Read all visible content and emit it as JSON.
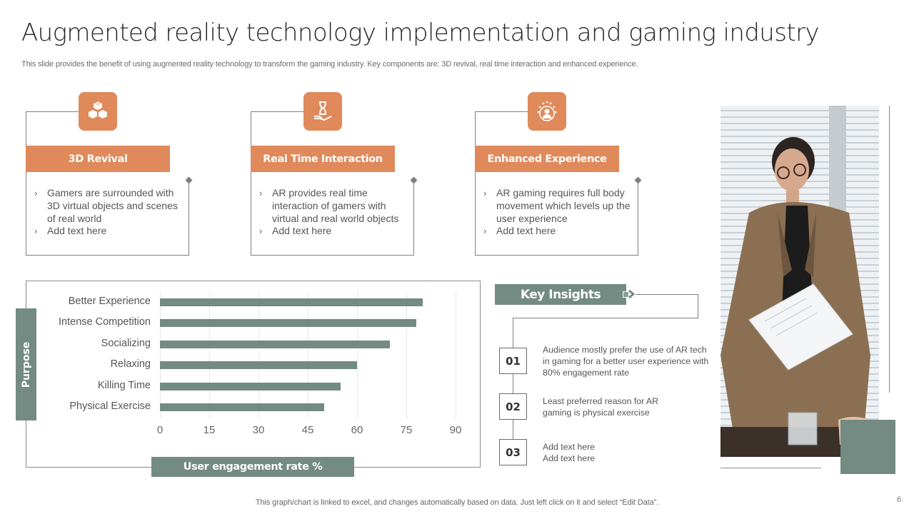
{
  "slide": {
    "title": "Augmented reality technology implementation and gaming industry",
    "subtitle": "This slide provides the benefit of using augmented reality technology to transform the gaming industry. Key components are: 3D revival, real time interaction and enhanced experience.",
    "footer_note": "This graph/chart is linked to excel, and changes automatically based on data. Just left click on it and select “Edit Data”.",
    "page_number": "6",
    "colors": {
      "accent_orange": "#E0895B",
      "accent_sage": "#738B82",
      "line_gray": "#7F7F7F"
    }
  },
  "cards": [
    {
      "icon": "cubes-icon",
      "title": "3D Revival",
      "bullets": [
        "Gamers are surrounded with 3D virtual objects and scenes of real world",
        "Add text here"
      ]
    },
    {
      "icon": "hourglass-hand-icon",
      "title": "Real Time Interaction",
      "bullets": [
        "AR provides real time interaction of gamers with virtual and real world objects",
        "Add text here"
      ]
    },
    {
      "icon": "user-stars-icon",
      "title": "Enhanced Experience",
      "bullets": [
        "AR  gaming requires full body movement which levels up the user experience",
        "Add text here"
      ]
    }
  ],
  "chart": {
    "y_axis_label": "Purpose",
    "x_axis_label": "User engagement rate %"
  },
  "chart_data": {
    "type": "bar",
    "orientation": "horizontal",
    "title": "",
    "xlabel": "User engagement rate %",
    "ylabel": "Purpose",
    "categories": [
      "Better Experience",
      "Intense Competition",
      "Socializing",
      "Relaxing",
      "Killing Time",
      "Physical Exercise"
    ],
    "values": [
      80,
      78,
      70,
      60,
      55,
      50
    ],
    "xlim": [
      0,
      90
    ],
    "xticks": [
      "0",
      "15",
      "30",
      "45",
      "60",
      "75",
      "90"
    ],
    "grid": "vertical",
    "legend": "none",
    "bar_color": "#738B82"
  },
  "insights": {
    "title": "Key Insights",
    "items": [
      {
        "number": "01",
        "text": "Audience mostly prefer the use of AR tech in gaming for a better user experience with 80% engagement rate"
      },
      {
        "number": "02",
        "text": "Least preferred  reason for AR gaming is physical exercise"
      },
      {
        "number": "03",
        "text": "Add text here\nAdd text here"
      }
    ]
  },
  "photo": {
    "alt": "Woman in brown blazer and glasses presenting a document in a meeting room"
  }
}
